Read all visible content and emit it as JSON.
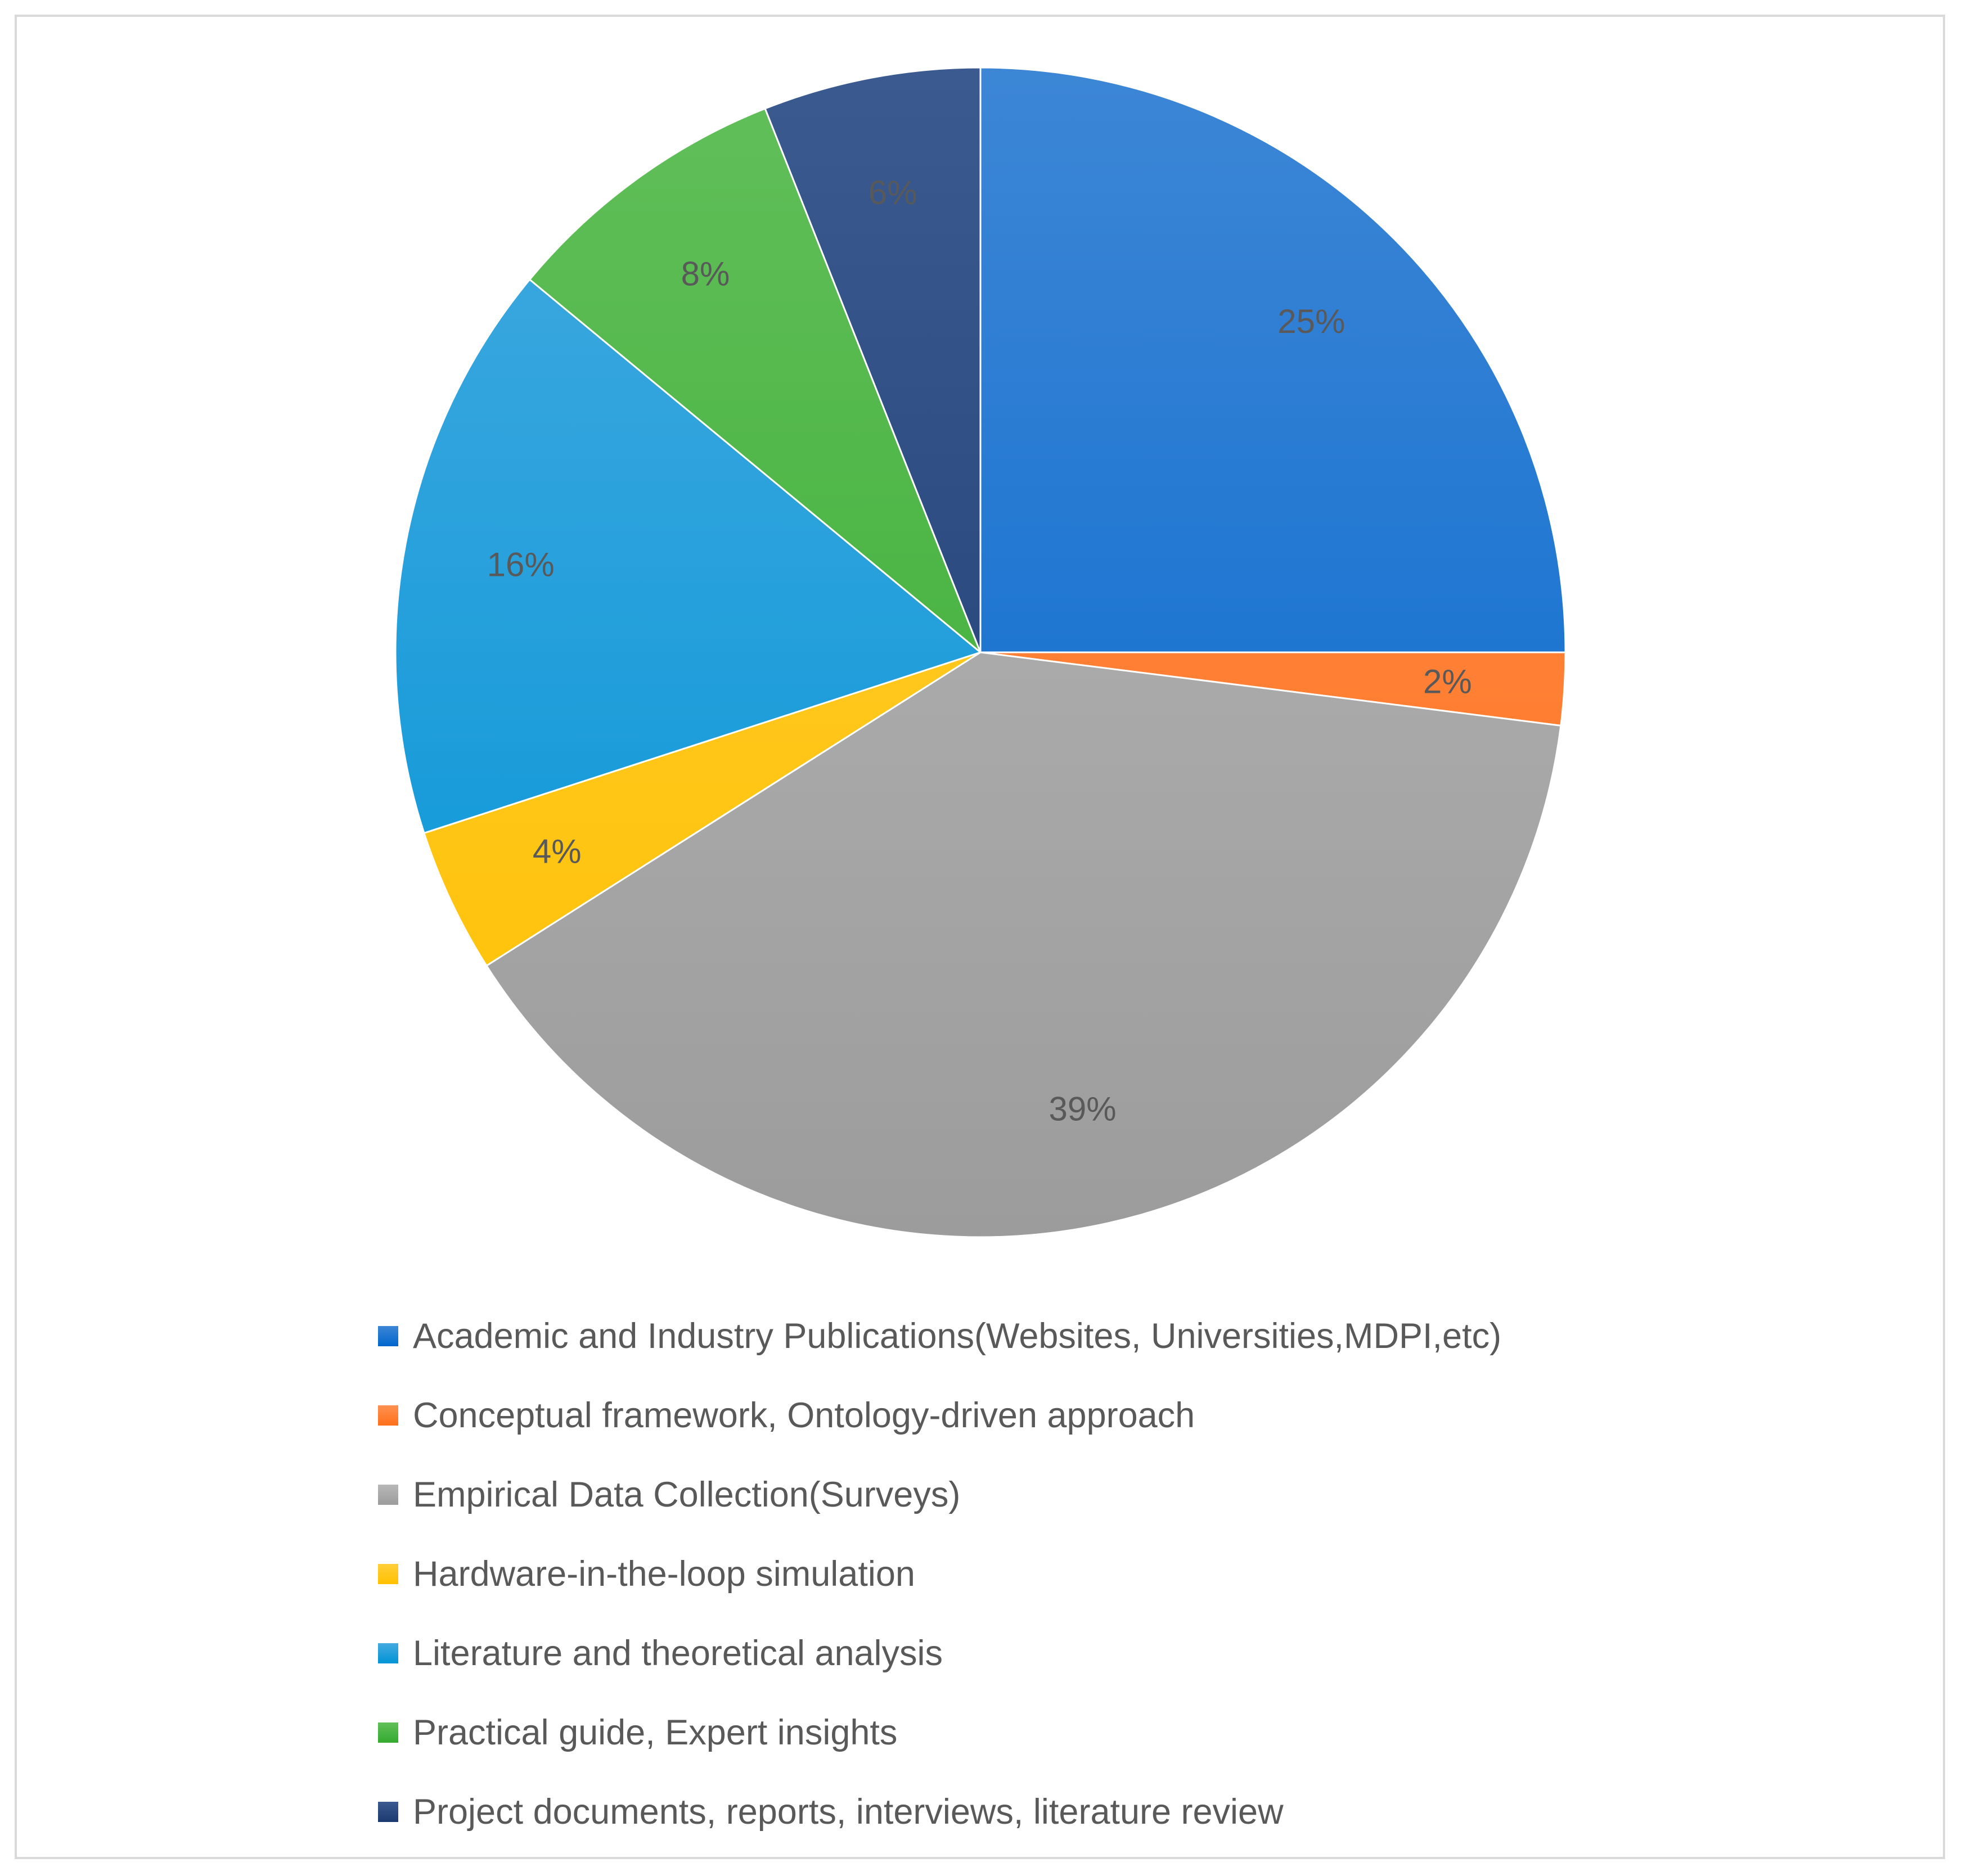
{
  "chart_data": {
    "type": "pie",
    "title": "",
    "legend_position": "bottom",
    "slices": [
      {
        "label": "Academic and Industry Publications(Websites, Universities,MDPI,etc)",
        "value": 25,
        "display": "25%",
        "color": "#0066cc",
        "color_light": "#3d86d6"
      },
      {
        "label": "Conceptual framework, Ontology-driven approach",
        "value": 2,
        "display": "2%",
        "color": "#ff6f1a",
        "color_light": "#ff9150"
      },
      {
        "label": "Empirical Data Collection(Surveys)",
        "value": 39,
        "display": "39%",
        "color": "#9c9c9c",
        "color_light": "#b8b8b8"
      },
      {
        "label": "Hardware-in-the-loop simulation",
        "value": 4,
        "display": "4%",
        "color": "#ffc000",
        "color_light": "#ffcf3a"
      },
      {
        "label": "Literature and theoretical analysis",
        "value": 16,
        "display": "16%",
        "color": "#0094d6",
        "color_light": "#45aae0"
      },
      {
        "label": "Practical guide, Expert insights",
        "value": 8,
        "display": "8%",
        "color": "#33aa2e",
        "color_light": "#62bf5a"
      },
      {
        "label": "Project documents, reports, interviews, literature review",
        "value": 6,
        "display": "6%",
        "color": "#1a3a70",
        "color_light": "#3a5a90"
      }
    ]
  }
}
